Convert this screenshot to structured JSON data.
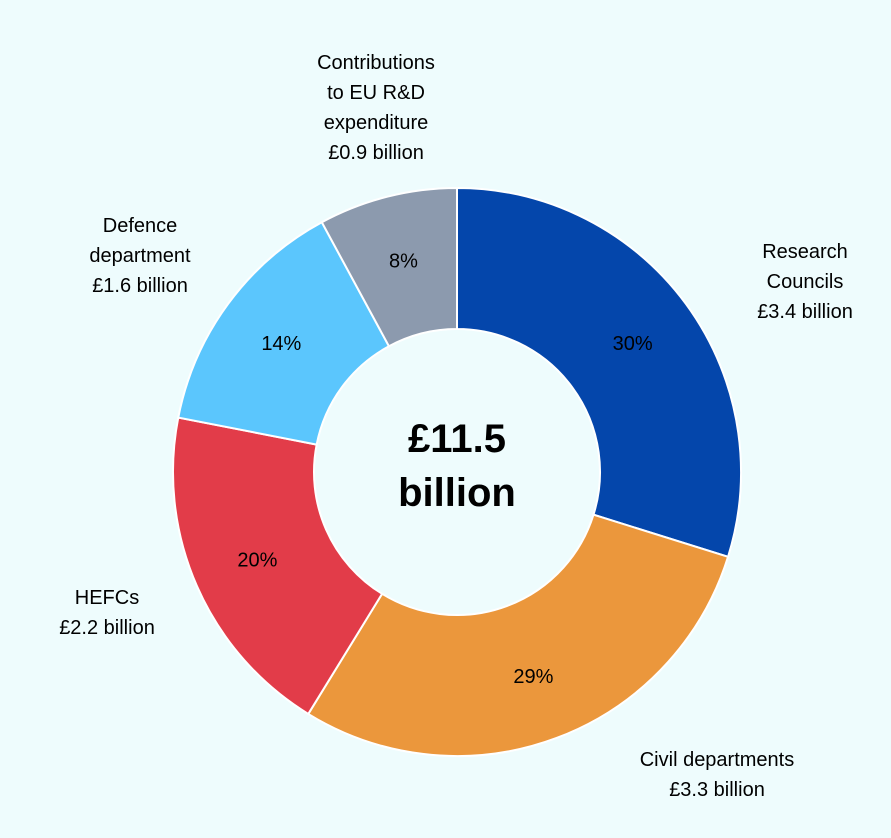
{
  "chart_data": {
    "type": "pie",
    "center_label": [
      "£11.5",
      "billion"
    ],
    "slices": [
      {
        "name": "Research Councils",
        "value": 3.4,
        "percent_label": "30%",
        "color": "#0446ab",
        "label_lines": [
          "Research",
          "Councils",
          "£3.4 billion"
        ]
      },
      {
        "name": "Civil departments",
        "value": 3.3,
        "percent_label": "29%",
        "color": "#eb973c",
        "label_lines": [
          "Civil departments",
          "£3.3 billion"
        ]
      },
      {
        "name": "HEFCs",
        "value": 2.2,
        "percent_label": "20%",
        "color": "#e23c49",
        "label_lines": [
          "HEFCs",
          "£2.2 billion"
        ]
      },
      {
        "name": "Defence department",
        "value": 1.6,
        "percent_label": "14%",
        "color": "#5bc6fd",
        "label_lines": [
          "Defence",
          "department",
          "£1.6 billion"
        ]
      },
      {
        "name": "Contributions to EU R&D expenditure",
        "value": 0.9,
        "percent_label": "8%",
        "color": "#8c9aae",
        "label_lines": [
          "Contributions",
          "to EU R&D",
          "expenditure",
          "£0.9 billion"
        ]
      }
    ]
  }
}
